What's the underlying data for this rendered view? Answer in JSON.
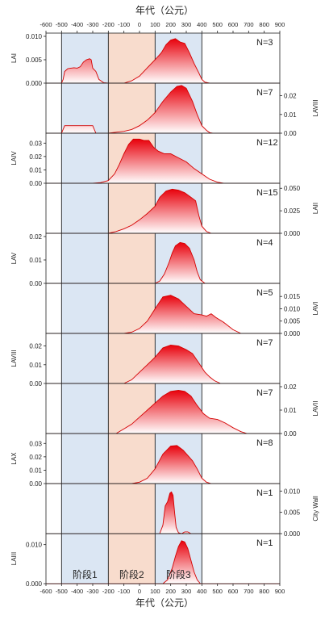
{
  "title": "年代（公元）",
  "xlabel": "年代（公元）",
  "x_ticks": [
    "-600",
    "-500",
    "-400",
    "-300",
    "-200",
    "-100",
    "0",
    "100",
    "200",
    "300",
    "400",
    "500",
    "600",
    "700",
    "800",
    "900"
  ],
  "phases": [
    {
      "label": "阶段1",
      "start": -500,
      "end": -200,
      "color": "#dbe6f3"
    },
    {
      "label": "阶段2",
      "start": -200,
      "end": 100,
      "color": "#f8dccd"
    },
    {
      "label": "阶段3",
      "start": 100,
      "end": 400,
      "color": "#dbe6f3"
    }
  ],
  "colors": {
    "fill_top": "#e8000b",
    "fill_bottom": "#ffffff",
    "line": "#d40000",
    "axis": "#222222",
    "baseline": "#cc0000"
  },
  "chart_data": {
    "type": "area",
    "xlabel": "年代（公元）",
    "xlim": [
      -600,
      900
    ],
    "grid": false,
    "legend": "none",
    "panels": [
      {
        "name": "LAI",
        "n_label": "N=3",
        "axis_side": "left",
        "ylim": [
          0,
          0.01
        ],
        "yticks": [
          "0.000",
          "0.005",
          "0.010"
        ],
        "points": [
          [
            -500,
            0
          ],
          [
            -490,
            0.0008
          ],
          [
            -480,
            0.0025
          ],
          [
            -460,
            0.0031
          ],
          [
            -440,
            0.0032
          ],
          [
            -420,
            0.0033
          ],
          [
            -400,
            0.0032
          ],
          [
            -380,
            0.0035
          ],
          [
            -360,
            0.0045
          ],
          [
            -340,
            0.005
          ],
          [
            -320,
            0.0052
          ],
          [
            -310,
            0.005
          ],
          [
            -300,
            0.0032
          ],
          [
            -280,
            0.0025
          ],
          [
            -260,
            0.0008
          ],
          [
            -230,
            0.0001
          ],
          [
            -200,
            0
          ],
          [
            -150,
            0
          ],
          [
            -100,
            0
          ],
          [
            -50,
            0.0005
          ],
          [
            0,
            0.0015
          ],
          [
            50,
            0.0033
          ],
          [
            100,
            0.005
          ],
          [
            140,
            0.0065
          ],
          [
            170,
            0.0082
          ],
          [
            200,
            0.0092
          ],
          [
            230,
            0.0095
          ],
          [
            260,
            0.0088
          ],
          [
            290,
            0.0085
          ],
          [
            320,
            0.0065
          ],
          [
            350,
            0.0042
          ],
          [
            380,
            0.0022
          ],
          [
            400,
            0.0008
          ],
          [
            420,
            0.0002
          ],
          [
            450,
            0
          ]
        ]
      },
      {
        "name": "LAVIII",
        "n_label": "N=7",
        "axis_side": "right",
        "ylim": [
          0,
          0.025
        ],
        "yticks": [
          "0.00",
          "0.01",
          "0.02"
        ],
        "points": [
          [
            -500,
            0
          ],
          [
            -480,
            0.004
          ],
          [
            -300,
            0.004
          ],
          [
            -280,
            0
          ],
          [
            -200,
            0
          ],
          [
            -150,
            0.0005
          ],
          [
            -100,
            0.001
          ],
          [
            -50,
            0.002
          ],
          [
            0,
            0.004
          ],
          [
            50,
            0.007
          ],
          [
            100,
            0.011
          ],
          [
            150,
            0.017
          ],
          [
            200,
            0.022
          ],
          [
            240,
            0.025
          ],
          [
            270,
            0.0255
          ],
          [
            300,
            0.024
          ],
          [
            340,
            0.017
          ],
          [
            370,
            0.01
          ],
          [
            400,
            0.004
          ],
          [
            430,
            0.0015
          ],
          [
            450,
            0.0003
          ],
          [
            470,
            0
          ]
        ]
      },
      {
        "name": "LAIV",
        "n_label": "N=12",
        "axis_side": "left",
        "ylim": [
          0,
          0.035
        ],
        "yticks": [
          "0.00",
          "0.01",
          "0.02",
          "0.03"
        ],
        "points": [
          [
            -300,
            0
          ],
          [
            -250,
            0.0005
          ],
          [
            -200,
            0.002
          ],
          [
            -160,
            0.007
          ],
          [
            -130,
            0.014
          ],
          [
            -100,
            0.022
          ],
          [
            -70,
            0.029
          ],
          [
            -40,
            0.033
          ],
          [
            0,
            0.033
          ],
          [
            30,
            0.032
          ],
          [
            60,
            0.032
          ],
          [
            90,
            0.027
          ],
          [
            120,
            0.024
          ],
          [
            160,
            0.022
          ],
          [
            200,
            0.022
          ],
          [
            250,
            0.019
          ],
          [
            300,
            0.016
          ],
          [
            350,
            0.011
          ],
          [
            400,
            0.007
          ],
          [
            450,
            0.003
          ],
          [
            500,
            0.0008
          ],
          [
            540,
            0
          ]
        ]
      },
      {
        "name": "LAII",
        "n_label": "N=15",
        "axis_side": "right",
        "ylim": [
          0,
          0.052
        ],
        "yticks": [
          "0.000",
          "0.025",
          "0.050"
        ],
        "points": [
          [
            -200,
            0
          ],
          [
            -150,
            0.002
          ],
          [
            -100,
            0.005
          ],
          [
            -50,
            0.009
          ],
          [
            0,
            0.015
          ],
          [
            50,
            0.022
          ],
          [
            100,
            0.03
          ],
          [
            130,
            0.04
          ],
          [
            170,
            0.047
          ],
          [
            210,
            0.049
          ],
          [
            250,
            0.048
          ],
          [
            290,
            0.045
          ],
          [
            330,
            0.04
          ],
          [
            360,
            0.036
          ],
          [
            380,
            0.02
          ],
          [
            400,
            0.008
          ],
          [
            430,
            0.002
          ],
          [
            460,
            0
          ]
        ]
      },
      {
        "name": "LAV",
        "n_label": "N=4",
        "axis_side": "left",
        "ylim": [
          0,
          0.02
        ],
        "yticks": [
          "0.00",
          "0.01",
          "0.02"
        ],
        "points": [
          [
            100,
            0
          ],
          [
            130,
            0.001
          ],
          [
            160,
            0.004
          ],
          [
            190,
            0.009
          ],
          [
            210,
            0.013
          ],
          [
            230,
            0.016
          ],
          [
            260,
            0.0175
          ],
          [
            290,
            0.017
          ],
          [
            320,
            0.015
          ],
          [
            350,
            0.01
          ],
          [
            370,
            0.005
          ],
          [
            390,
            0.0015
          ],
          [
            420,
            0
          ]
        ]
      },
      {
        "name": "LAVI",
        "n_label": "N=5",
        "axis_side": "right",
        "ylim": [
          0,
          0.019
        ],
        "yticks": [
          "0.000",
          "0.005",
          "0.010",
          "0.015"
        ],
        "points": [
          [
            -100,
            0
          ],
          [
            -50,
            0.0005
          ],
          [
            0,
            0.002
          ],
          [
            50,
            0.005
          ],
          [
            100,
            0.01
          ],
          [
            150,
            0.0148
          ],
          [
            200,
            0.0155
          ],
          [
            250,
            0.014
          ],
          [
            300,
            0.011
          ],
          [
            350,
            0.008
          ],
          [
            400,
            0.0075
          ],
          [
            430,
            0.007
          ],
          [
            460,
            0.008
          ],
          [
            490,
            0.0065
          ],
          [
            540,
            0.0045
          ],
          [
            600,
            0.0015
          ],
          [
            650,
            0
          ]
        ]
      },
      {
        "name": "LAVIII",
        "n_label": "N=7",
        "axis_side": "left",
        "ylim": [
          0,
          0.025
        ],
        "yticks": [
          "0.00",
          "0.01",
          "0.02"
        ],
        "points": [
          [
            -100,
            0
          ],
          [
            -50,
            0.002
          ],
          [
            0,
            0.006
          ],
          [
            50,
            0.01
          ],
          [
            100,
            0.014
          ],
          [
            150,
            0.019
          ],
          [
            200,
            0.0205
          ],
          [
            250,
            0.02
          ],
          [
            300,
            0.018
          ],
          [
            340,
            0.016
          ],
          [
            380,
            0.011
          ],
          [
            420,
            0.006
          ],
          [
            450,
            0.0035
          ],
          [
            480,
            0.0015
          ],
          [
            520,
            0
          ]
        ]
      },
      {
        "name": "LAVII",
        "n_label": "N=7",
        "axis_side": "right",
        "ylim": [
          0,
          0.02
        ],
        "yticks": [
          "0.00",
          "0.01",
          "0.02"
        ],
        "points": [
          [
            -150,
            0
          ],
          [
            -100,
            0.002
          ],
          [
            -50,
            0.004
          ],
          [
            0,
            0.007
          ],
          [
            50,
            0.01
          ],
          [
            100,
            0.013
          ],
          [
            150,
            0.016
          ],
          [
            200,
            0.018
          ],
          [
            250,
            0.0185
          ],
          [
            290,
            0.018
          ],
          [
            330,
            0.016
          ],
          [
            370,
            0.012
          ],
          [
            410,
            0.0085
          ],
          [
            450,
            0.0065
          ],
          [
            500,
            0.006
          ],
          [
            550,
            0.0045
          ],
          [
            600,
            0.0025
          ],
          [
            650,
            0.0008
          ],
          [
            690,
            0
          ]
        ]
      },
      {
        "name": "LAX",
        "n_label": "N=8",
        "axis_side": "left",
        "ylim": [
          0,
          0.035
        ],
        "yticks": [
          "0.00",
          "0.01",
          "0.02",
          "0.03"
        ],
        "points": [
          [
            -50,
            0
          ],
          [
            0,
            0.001
          ],
          [
            50,
            0.004
          ],
          [
            100,
            0.011
          ],
          [
            150,
            0.022
          ],
          [
            200,
            0.028
          ],
          [
            240,
            0.0285
          ],
          [
            280,
            0.025
          ],
          [
            310,
            0.021
          ],
          [
            340,
            0.017
          ],
          [
            370,
            0.011
          ],
          [
            400,
            0.004
          ],
          [
            430,
            0.001
          ],
          [
            460,
            0
          ]
        ]
      },
      {
        "name": "City Wall",
        "n_label": "N=1",
        "axis_side": "right",
        "ylim": [
          0,
          0.011
        ],
        "yticks": [
          "0.000",
          "0.005",
          "0.010"
        ],
        "points": [
          [
            130,
            0
          ],
          [
            150,
            0.002
          ],
          [
            165,
            0.0065
          ],
          [
            180,
            0.0075
          ],
          [
            195,
            0.0095
          ],
          [
            205,
            0.0098
          ],
          [
            215,
            0.009
          ],
          [
            225,
            0.005
          ],
          [
            235,
            0.0015
          ],
          [
            250,
            0.0002
          ],
          [
            270,
            0
          ],
          [
            290,
            0.0004
          ],
          [
            310,
            0.0004
          ],
          [
            330,
            0
          ]
        ]
      },
      {
        "name": "LAIII",
        "n_label": "N=1",
        "axis_side": "left",
        "ylim": [
          0,
          0.012
        ],
        "yticks": [
          "0.000",
          "0.010"
        ],
        "points": [
          [
            150,
            0
          ],
          [
            180,
            0.001
          ],
          [
            210,
            0.004
          ],
          [
            230,
            0.007
          ],
          [
            250,
            0.0095
          ],
          [
            270,
            0.011
          ],
          [
            290,
            0.0107
          ],
          [
            310,
            0.009
          ],
          [
            330,
            0.006
          ],
          [
            350,
            0.003
          ],
          [
            370,
            0.001
          ],
          [
            390,
            0
          ]
        ]
      }
    ]
  }
}
